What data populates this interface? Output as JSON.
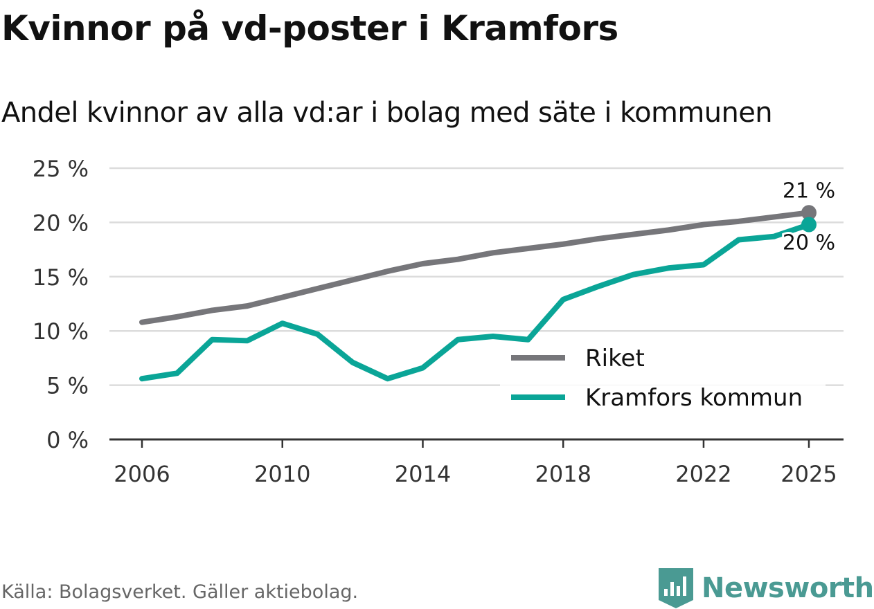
{
  "title": "Kvinnor på vd-poster i Kramfors",
  "subtitle": "Andel kvinnor av alla vd:ar i bolag med säte i kommunen",
  "source": "Källa: Bolagsverket. Gäller aktiebolag.",
  "brand": "Newsworthy",
  "colors": {
    "riket": "#76767a",
    "kramfors": "#0aa597",
    "grid": "#dcdcdc",
    "axis": "#333333",
    "brand": "#4a9a93"
  },
  "chart_data": {
    "type": "line",
    "title": "Kvinnor på vd-poster i Kramfors",
    "subtitle": "Andel kvinnor av alla vd:ar i bolag med säte i kommunen",
    "xlabel": "",
    "ylabel": "",
    "xlim": [
      2006,
      2025
    ],
    "ylim": [
      0,
      25
    ],
    "yticks": [
      0,
      5,
      10,
      15,
      20,
      25
    ],
    "ytick_labels": [
      "0 %",
      "5 %",
      "10 %",
      "15 %",
      "20 %",
      "25 %"
    ],
    "xticks": [
      2006,
      2010,
      2014,
      2018,
      2022,
      2025
    ],
    "xtick_labels": [
      "2006",
      "2010",
      "2014",
      "2018",
      "2022",
      "2025"
    ],
    "grid": true,
    "legend_position": "bottom-right",
    "x": [
      2006,
      2007,
      2008,
      2009,
      2010,
      2011,
      2012,
      2013,
      2014,
      2015,
      2016,
      2017,
      2018,
      2019,
      2020,
      2021,
      2022,
      2023,
      2024,
      2025
    ],
    "series": [
      {
        "name": "Riket",
        "color": "#76767a",
        "values": [
          10.8,
          11.3,
          11.9,
          12.3,
          13.1,
          13.9,
          14.7,
          15.5,
          16.2,
          16.6,
          17.2,
          17.6,
          18.0,
          18.5,
          18.9,
          19.3,
          19.8,
          20.1,
          20.5,
          20.9
        ],
        "end_label": "21 %"
      },
      {
        "name": "Kramfors kommun",
        "color": "#0aa597",
        "values": [
          5.6,
          6.1,
          9.2,
          9.1,
          10.7,
          9.7,
          7.1,
          5.6,
          6.6,
          9.2,
          9.5,
          9.2,
          12.9,
          14.1,
          15.2,
          15.8,
          16.1,
          18.4,
          18.7,
          19.8
        ],
        "end_label": "20 %"
      }
    ]
  }
}
